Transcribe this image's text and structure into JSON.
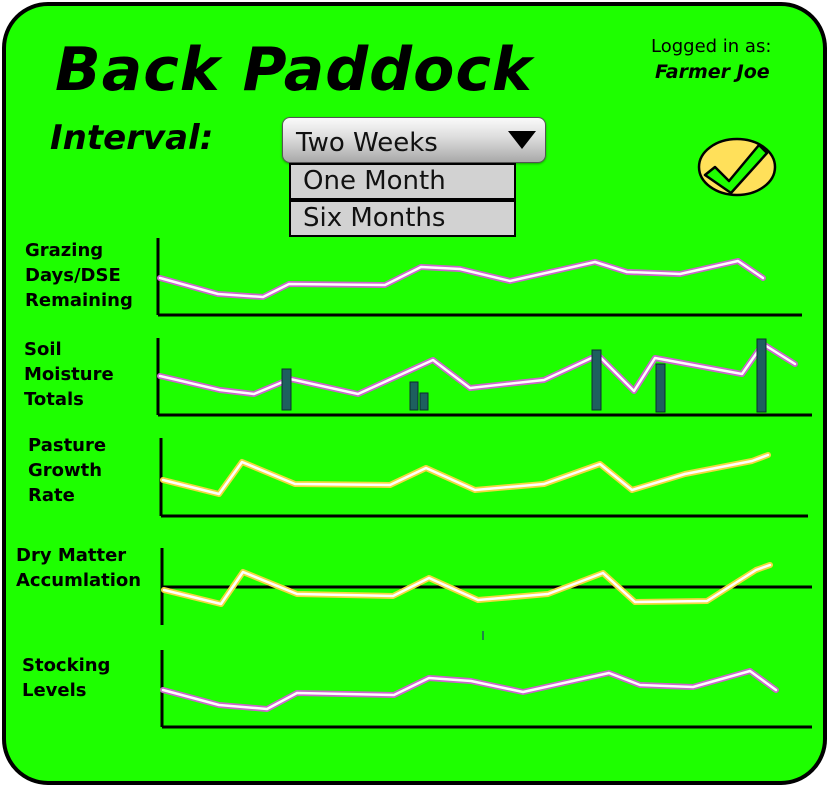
{
  "header": {
    "title": "Back Paddock",
    "logged_in_label": "Logged in as:",
    "user_name": "Farmer Joe"
  },
  "interval": {
    "label": "Interval:",
    "selected": "Two Weeks",
    "options": [
      "One Month",
      "Six Months"
    ]
  },
  "confirm_button": {
    "icon": "checkmark-icon",
    "color": "#ffe05a",
    "check_color": "#1eff00"
  },
  "colors": {
    "background": "#1eff00",
    "line_purple": "#cc66cc",
    "line_yellow": "#f5d840",
    "bar_teal": "#1e5f5f"
  },
  "rows": [
    {
      "label": "Grazing\nDays/DSE\nRemaining"
    },
    {
      "label": "Soil\nMoisture\nTotals"
    },
    {
      "label": "Pasture\nGrowth\nRate"
    },
    {
      "label": "Dry Matter\nAccumlation"
    },
    {
      "label": "Stocking\nLevels"
    }
  ]
}
